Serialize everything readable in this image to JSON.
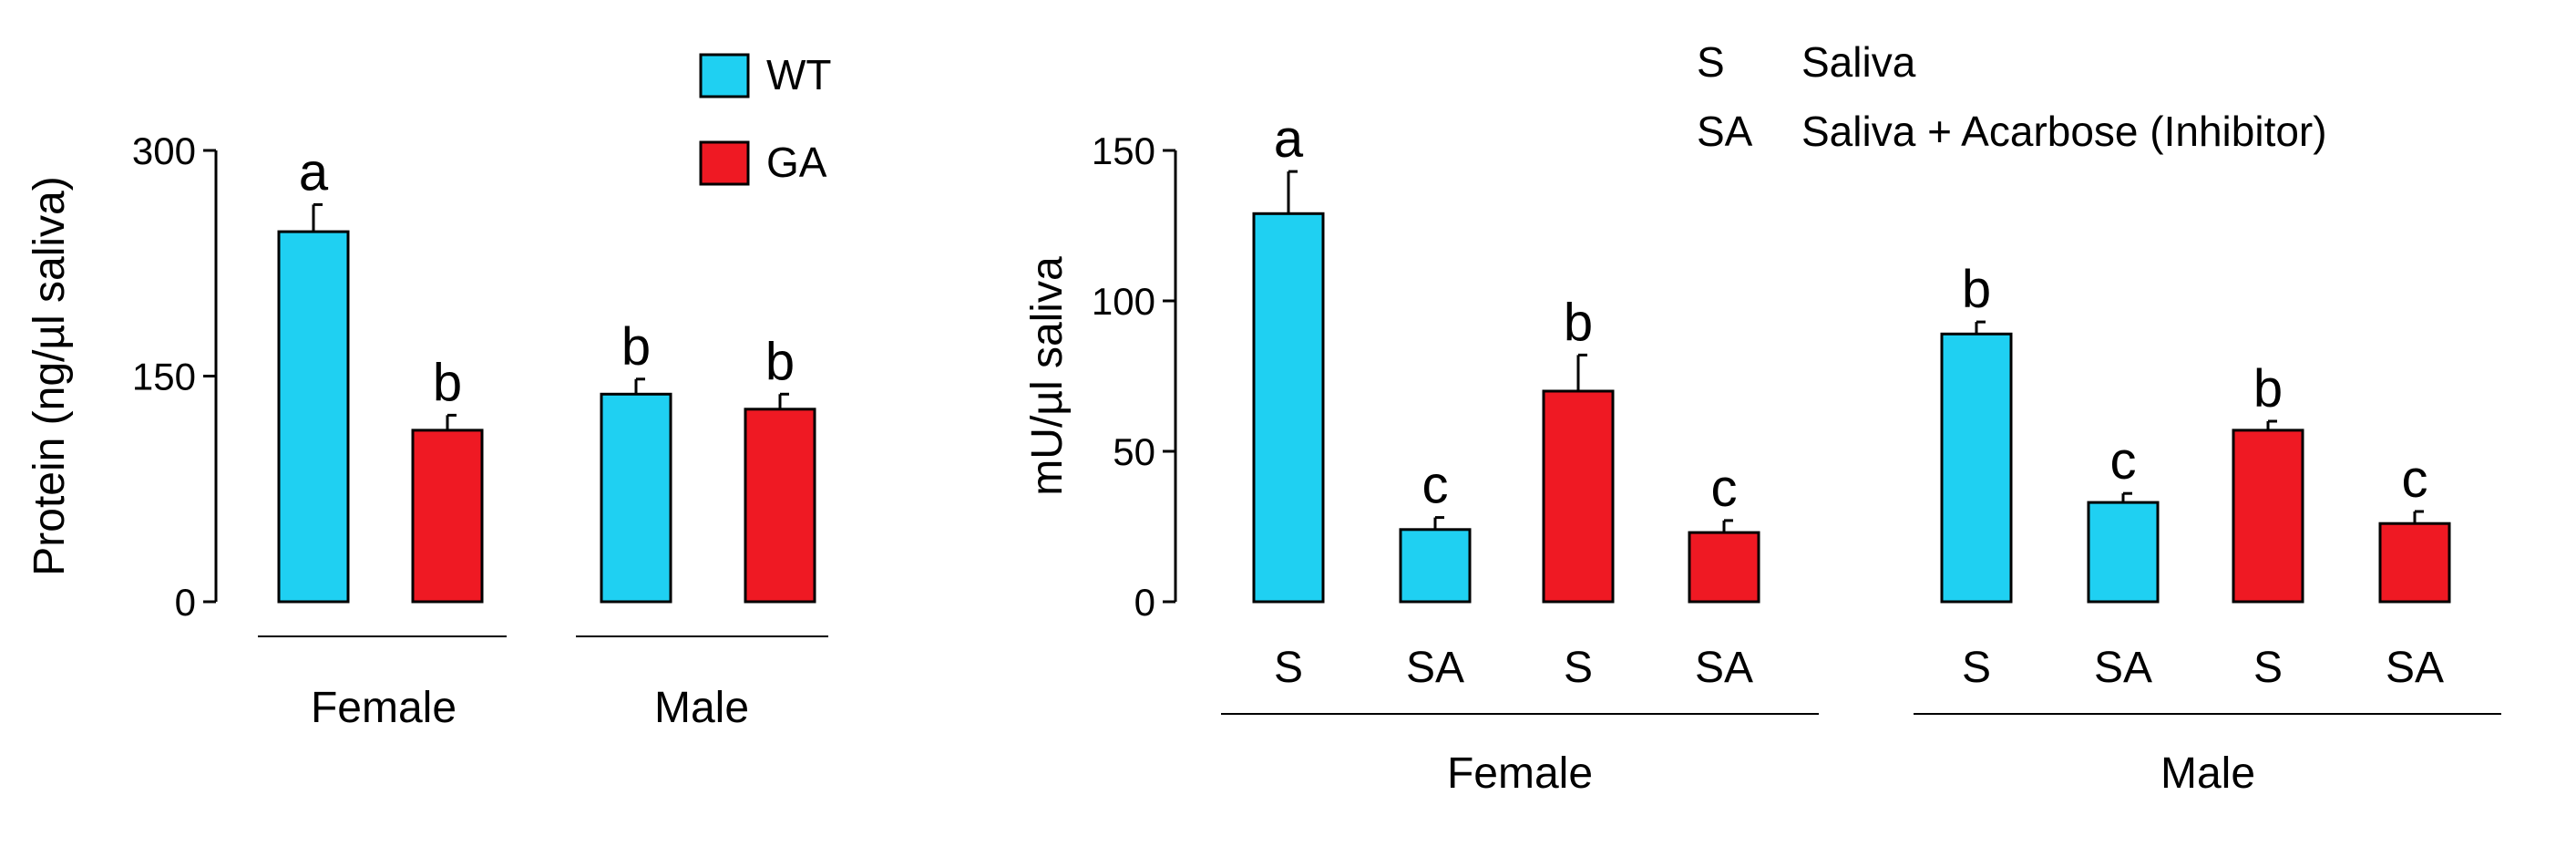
{
  "colors": {
    "WT": "#1fd0f2",
    "GA": "#ef1923",
    "axis": "#000000"
  },
  "chart_data": [
    {
      "type": "bar",
      "ylabel": "Protein (ng/µl saliva)",
      "ylim": [
        0,
        300
      ],
      "yticks": [
        "0",
        "150",
        "300"
      ],
      "legend": [
        {
          "name": "WT",
          "color": "WT"
        },
        {
          "name": "GA",
          "color": "GA"
        }
      ],
      "bars": [
        {
          "group": "Female",
          "series": "WT",
          "value": 246,
          "error": 18,
          "sig": "a"
        },
        {
          "group": "Female",
          "series": "GA",
          "value": 114,
          "error": 10,
          "sig": "b"
        },
        {
          "group": "Male",
          "series": "WT",
          "value": 138,
          "error": 10,
          "sig": "b"
        },
        {
          "group": "Male",
          "series": "GA",
          "value": 128,
          "error": 10,
          "sig": "b"
        }
      ],
      "groups": [
        "Female",
        "Male"
      ]
    },
    {
      "type": "bar",
      "ylabel": "mU/µl saliva",
      "ylim": [
        0,
        150
      ],
      "yticks": [
        "0",
        "50",
        "100",
        "150"
      ],
      "legend_text": [
        {
          "code": "S",
          "desc": "Saliva"
        },
        {
          "code": "SA",
          "desc": "Saliva + Acarbose (Inhibitor)"
        }
      ],
      "bars": [
        {
          "group": "Female",
          "category": "S",
          "series": "WT",
          "value": 129,
          "error": 14,
          "sig": "a"
        },
        {
          "group": "Female",
          "category": "SA",
          "series": "WT",
          "value": 24,
          "error": 4,
          "sig": "c"
        },
        {
          "group": "Female",
          "category": "S",
          "series": "GA",
          "value": 70,
          "error": 12,
          "sig": "b"
        },
        {
          "group": "Female",
          "category": "SA",
          "series": "GA",
          "value": 23,
          "error": 4,
          "sig": "c"
        },
        {
          "group": "Male",
          "category": "S",
          "series": "WT",
          "value": 89,
          "error": 4,
          "sig": "b"
        },
        {
          "group": "Male",
          "category": "SA",
          "series": "WT",
          "value": 33,
          "error": 3,
          "sig": "c"
        },
        {
          "group": "Male",
          "category": "S",
          "series": "GA",
          "value": 57,
          "error": 3,
          "sig": "b"
        },
        {
          "group": "Male",
          "category": "SA",
          "series": "GA",
          "value": 26,
          "error": 4,
          "sig": "c"
        }
      ],
      "groups": [
        "Female",
        "Male"
      ]
    }
  ]
}
